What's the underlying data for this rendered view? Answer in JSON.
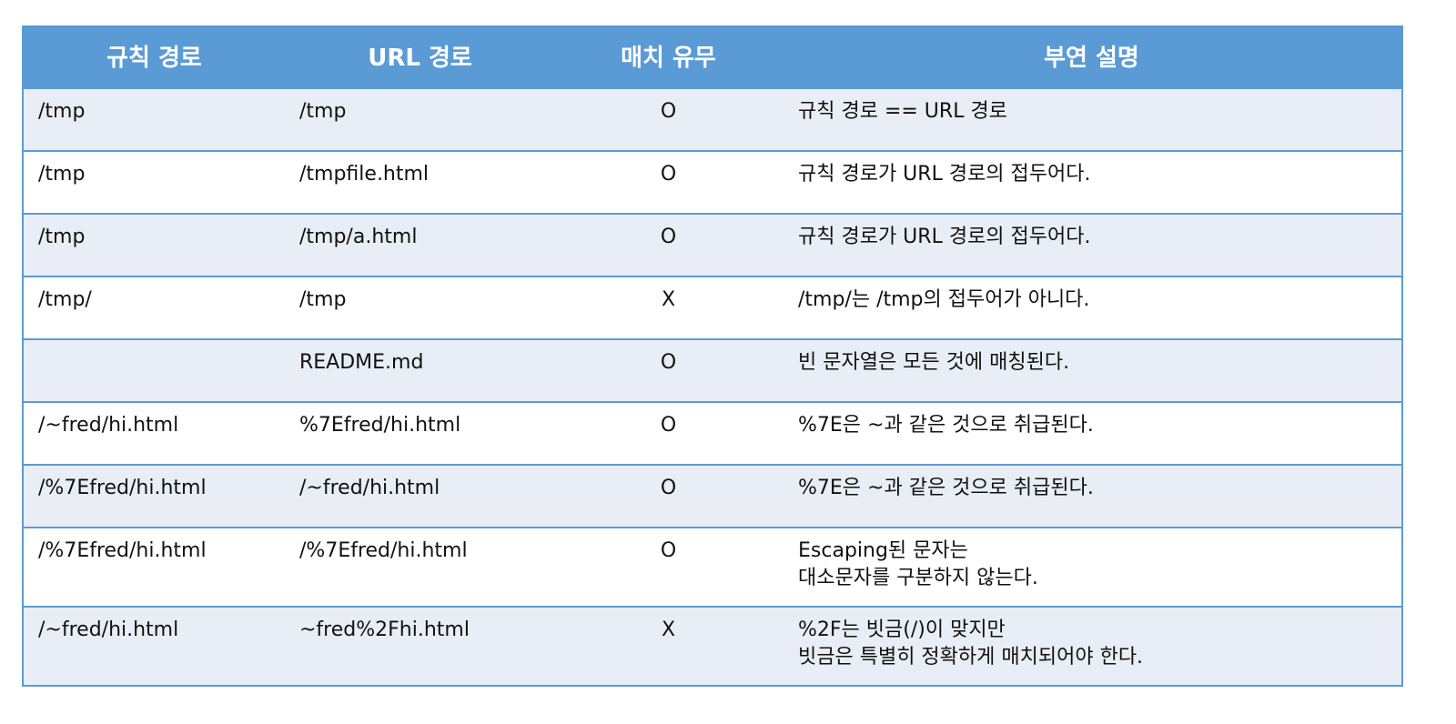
{
  "header": {
    "col_rule_path": "규칙 경로",
    "col_url_path": "URL 경로",
    "col_match": "매치 유무",
    "col_note": "부연 설명"
  },
  "rows": [
    {
      "rule": "/tmp",
      "url": "/tmp",
      "match": "O",
      "note": [
        "규칙 경로 == URL 경로"
      ]
    },
    {
      "rule": "/tmp",
      "url": "/tmpfile.html",
      "match": "O",
      "note": [
        "규칙 경로가 URL 경로의 접두어다."
      ]
    },
    {
      "rule": "/tmp",
      "url": "/tmp/a.html",
      "match": "O",
      "note": [
        "규칙 경로가 URL 경로의 접두어다."
      ]
    },
    {
      "rule": "/tmp/",
      "url": "/tmp",
      "match": "X",
      "note": [
        "/tmp/는 /tmp의 접두어가 아니다."
      ]
    },
    {
      "rule": "",
      "url": "README.md",
      "match": "O",
      "note": [
        "빈 문자열은 모든 것에 매칭된다."
      ]
    },
    {
      "rule": "/~fred/hi.html",
      "url": "%7Efred/hi.html",
      "match": "O",
      "note": [
        "%7E은 ~과 같은 것으로 취급된다."
      ]
    },
    {
      "rule": "/%7Efred/hi.html",
      "url": "/~fred/hi.html",
      "match": "O",
      "note": [
        "%7E은 ~과 같은 것으로 취급된다."
      ]
    },
    {
      "rule": "/%7Efred/hi.html",
      "url": "/%7Efred/hi.html",
      "match": "O",
      "note": [
        "Escaping된 문자는",
        "대소문자를 구분하지 않는다."
      ]
    },
    {
      "rule": "/~fred/hi.html",
      "url": "~fred%2Fhi.html",
      "match": "X",
      "note": [
        "%2F는 빗금(/)이 맞지만",
        "빗금은 특별히 정확하게 매치되어야 한다."
      ]
    }
  ]
}
